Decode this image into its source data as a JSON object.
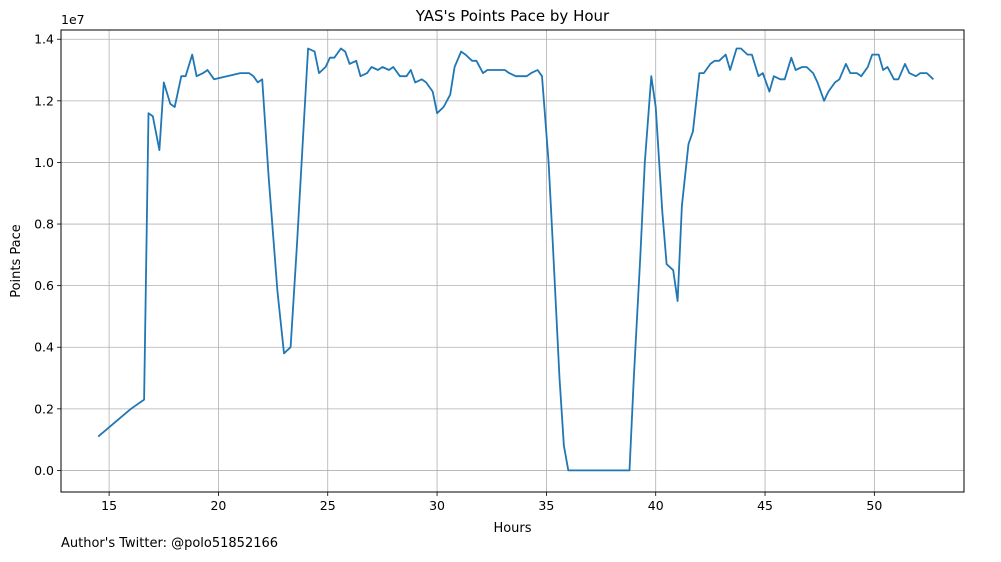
{
  "chart_data": {
    "type": "line",
    "title": "YAS's Points Pace by Hour",
    "xlabel": "Hours",
    "ylabel": "Points Pace",
    "y_offset_label": "1e7",
    "xlim": [
      12.8,
      54.1
    ],
    "ylim": [
      -0.07,
      1.43
    ],
    "x_ticks": [
      15,
      20,
      25,
      30,
      35,
      40,
      45,
      50
    ],
    "x_tick_labels": [
      "15",
      "20",
      "25",
      "30",
      "35",
      "40",
      "45",
      "50"
    ],
    "y_ticks": [
      0.0,
      0.2,
      0.4,
      0.6,
      0.8,
      1.0,
      1.2,
      1.4
    ],
    "y_tick_labels": [
      "0.0",
      "0.2",
      "0.4",
      "0.6",
      "0.8",
      "1.0",
      "1.2",
      "1.4"
    ],
    "grid": true,
    "series": [
      {
        "color": "#1f77b4",
        "x": [
          14.5,
          15.5,
          16.0,
          16.6,
          16.8,
          17.0,
          17.3,
          17.5,
          17.8,
          18.0,
          18.3,
          18.5,
          18.8,
          19.0,
          19.3,
          19.5,
          19.8,
          21.0,
          21.4,
          21.6,
          21.8,
          22.0,
          22.3,
          22.7,
          23.0,
          23.3,
          23.6,
          23.9,
          24.1,
          24.4,
          24.6,
          24.9,
          25.1,
          25.3,
          25.6,
          25.8,
          26.0,
          26.3,
          26.5,
          26.8,
          27.0,
          27.3,
          27.5,
          27.8,
          28.0,
          28.3,
          28.6,
          28.8,
          29.0,
          29.3,
          29.5,
          29.8,
          30.0,
          30.3,
          30.6,
          30.8,
          31.1,
          31.3,
          31.6,
          31.8,
          32.1,
          32.3,
          32.6,
          32.8,
          33.1,
          33.3,
          33.6,
          33.8,
          34.1,
          34.3,
          34.6,
          34.8,
          35.1,
          35.3,
          35.6,
          35.8,
          36.0,
          38.8,
          39.0,
          39.3,
          39.5,
          39.8,
          40.0,
          40.3,
          40.5,
          40.8,
          41.0,
          41.2,
          41.5,
          41.7,
          42.0,
          42.2,
          42.5,
          42.7,
          42.9,
          43.2,
          43.4,
          43.7,
          43.9,
          44.2,
          44.4,
          44.7,
          44.9,
          45.2,
          45.4,
          45.7,
          45.9,
          46.2,
          46.4,
          46.7,
          46.9,
          47.2,
          47.4,
          47.7,
          47.9,
          48.2,
          48.4,
          48.7,
          48.9,
          49.2,
          49.4,
          49.7,
          49.9,
          50.2,
          50.4,
          50.6,
          50.9,
          51.1,
          51.4,
          51.6,
          51.9,
          52.1,
          52.4,
          52.7
        ],
        "y": [
          0.11,
          0.17,
          0.2,
          0.23,
          1.16,
          1.15,
          1.04,
          1.26,
          1.19,
          1.18,
          1.28,
          1.28,
          1.35,
          1.28,
          1.29,
          1.3,
          1.27,
          1.29,
          1.29,
          1.28,
          1.26,
          1.27,
          0.95,
          0.58,
          0.38,
          0.4,
          0.74,
          1.12,
          1.37,
          1.36,
          1.29,
          1.31,
          1.34,
          1.34,
          1.37,
          1.36,
          1.32,
          1.33,
          1.28,
          1.29,
          1.31,
          1.3,
          1.31,
          1.3,
          1.31,
          1.28,
          1.28,
          1.3,
          1.26,
          1.27,
          1.26,
          1.23,
          1.16,
          1.18,
          1.22,
          1.31,
          1.36,
          1.35,
          1.33,
          1.33,
          1.29,
          1.3,
          1.3,
          1.3,
          1.3,
          1.29,
          1.28,
          1.28,
          1.28,
          1.29,
          1.3,
          1.28,
          1.0,
          0.73,
          0.3,
          0.08,
          0.0,
          0.0,
          0.3,
          0.7,
          1.0,
          1.28,
          1.18,
          0.84,
          0.67,
          0.65,
          0.55,
          0.86,
          1.06,
          1.1,
          1.29,
          1.29,
          1.32,
          1.33,
          1.33,
          1.35,
          1.3,
          1.37,
          1.37,
          1.35,
          1.35,
          1.28,
          1.29,
          1.23,
          1.28,
          1.27,
          1.27,
          1.34,
          1.3,
          1.31,
          1.31,
          1.29,
          1.26,
          1.2,
          1.23,
          1.26,
          1.27,
          1.32,
          1.29,
          1.29,
          1.28,
          1.31,
          1.35,
          1.35,
          1.3,
          1.31,
          1.27,
          1.27,
          1.32,
          1.29,
          1.28,
          1.29,
          1.29,
          1.27
        ]
      }
    ]
  },
  "footer": {
    "author_text": "Author's Twitter: @polo51852166"
  }
}
